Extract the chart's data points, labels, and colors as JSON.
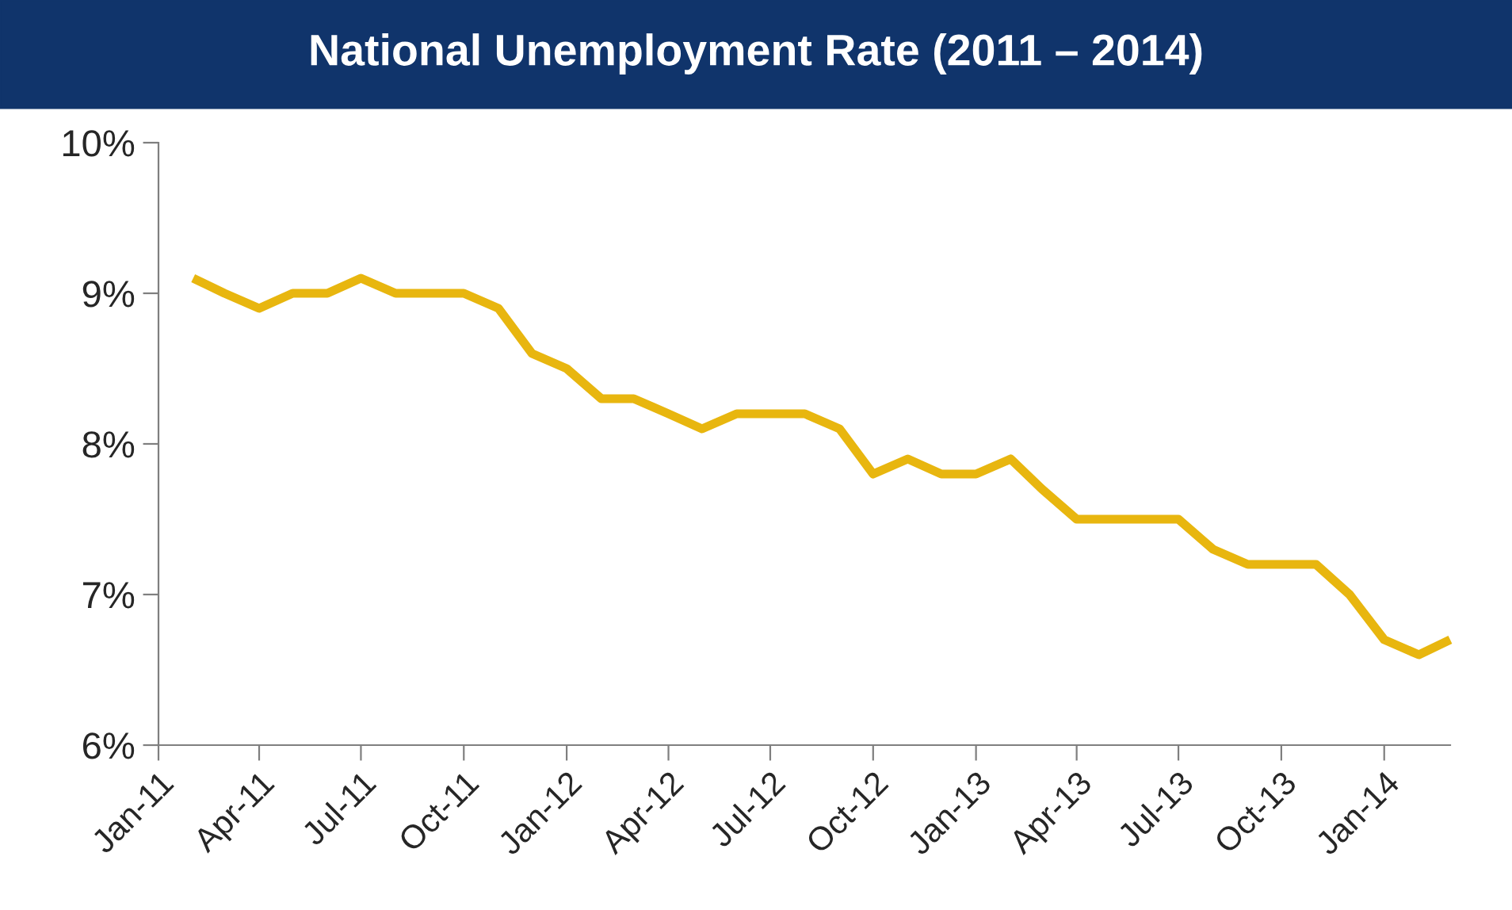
{
  "chart_data": {
    "type": "line",
    "title": "National Unemployment Rate (2011 – 2014)",
    "x": [
      "2011-02",
      "2011-03",
      "2011-04",
      "2011-05",
      "2011-06",
      "2011-07",
      "2011-08",
      "2011-09",
      "2011-10",
      "2011-11",
      "2011-12",
      "2012-01",
      "2012-02",
      "2012-03",
      "2012-04",
      "2012-05",
      "2012-06",
      "2012-07",
      "2012-08",
      "2012-09",
      "2012-10",
      "2012-11",
      "2012-12",
      "2013-01",
      "2013-02",
      "2013-03",
      "2013-04",
      "2013-05",
      "2013-06",
      "2013-07",
      "2013-08",
      "2013-09",
      "2013-10",
      "2013-11",
      "2013-12",
      "2014-01",
      "2014-02",
      "2014-03"
    ],
    "series": [
      {
        "color": "#e8b60f",
        "values": [
          9.1,
          9.0,
          8.9,
          9.0,
          9.0,
          9.1,
          9.0,
          9.0,
          9.0,
          8.9,
          8.6,
          8.5,
          8.3,
          8.3,
          8.2,
          8.1,
          8.2,
          8.2,
          8.2,
          8.1,
          7.8,
          7.9,
          7.8,
          7.8,
          7.9,
          7.7,
          7.5,
          7.5,
          7.5,
          7.5,
          7.3,
          7.2,
          7.2,
          7.2,
          7.0,
          6.7,
          6.6,
          6.7
        ]
      }
    ],
    "xlim": [
      "2011-01",
      "2014-03"
    ],
    "xticks": [
      {
        "value": "2011-01",
        "label": "Jan-11"
      },
      {
        "value": "2011-04",
        "label": "Apr-11"
      },
      {
        "value": "2011-07",
        "label": "Jul-11"
      },
      {
        "value": "2011-10",
        "label": "Oct-11"
      },
      {
        "value": "2012-01",
        "label": "Jan-12"
      },
      {
        "value": "2012-04",
        "label": "Apr-12"
      },
      {
        "value": "2012-07",
        "label": "Jul-12"
      },
      {
        "value": "2012-10",
        "label": "Oct-12"
      },
      {
        "value": "2013-01",
        "label": "Jan-13"
      },
      {
        "value": "2013-04",
        "label": "Apr-13"
      },
      {
        "value": "2013-07",
        "label": "Jul-13"
      },
      {
        "value": "2013-10",
        "label": "Oct-13"
      },
      {
        "value": "2014-01",
        "label": "Jan-14"
      }
    ],
    "ylim": [
      6,
      10
    ],
    "yticks": [
      {
        "value": 6,
        "label": "6%"
      },
      {
        "value": 7,
        "label": "7%"
      },
      {
        "value": 8,
        "label": "8%"
      },
      {
        "value": 9,
        "label": "9%"
      },
      {
        "value": 10,
        "label": "10%"
      }
    ],
    "grid": false,
    "marker": "none",
    "line_style": "solid"
  }
}
